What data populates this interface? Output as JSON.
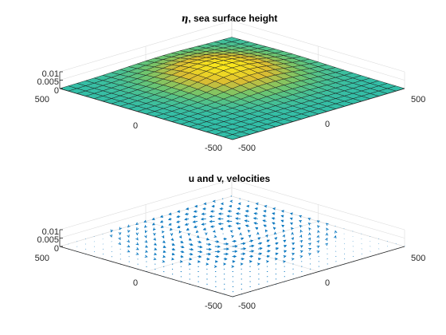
{
  "chart_data": [
    {
      "type": "surface",
      "title_symbol": "η",
      "title": ", sea surface height",
      "x_ticks": [
        "-500",
        "0",
        "500"
      ],
      "y_ticks": [
        "-500",
        "0",
        "500"
      ],
      "z_ticks": [
        "0",
        "0.005",
        "0.01"
      ],
      "xlim": [
        -500,
        500
      ],
      "ylim": [
        -500,
        500
      ],
      "zlim": [
        0,
        0.01
      ],
      "grid": true,
      "colormap": [
        "#3e26a8",
        "#2c8ed6",
        "#26bcb3",
        "#74c66a",
        "#dcbd32",
        "#f9e71c"
      ],
      "surface": {
        "mesh_cells": 20,
        "peak_height": 0.0065,
        "peak_center": [
          100,
          150
        ],
        "gaussian_width": 200
      }
    },
    {
      "type": "quiver",
      "title": "u and v, velocities",
      "x_ticks": [
        "-500",
        "0",
        "500"
      ],
      "y_ticks": [
        "-500",
        "0",
        "500"
      ],
      "z_ticks": [
        "0",
        "0.005",
        "0.01"
      ],
      "xlim": [
        -500,
        500
      ],
      "ylim": [
        -500,
        500
      ],
      "zlim": [
        0,
        0.01
      ],
      "grid": true,
      "arrow_color": "#0072bd",
      "vortex": {
        "grid_points": 21,
        "rotation": "counterclockwise",
        "center": [
          100,
          150
        ],
        "gaussian_width": 200
      }
    }
  ]
}
